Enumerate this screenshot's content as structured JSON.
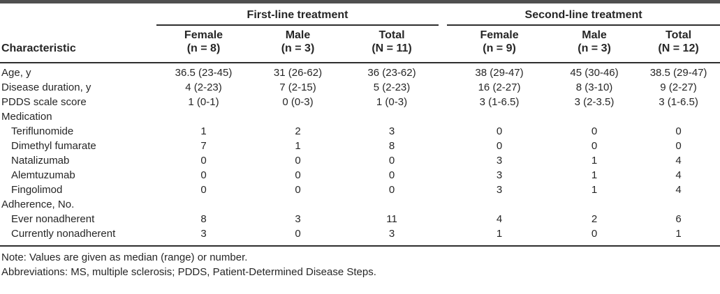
{
  "table": {
    "characteristic_header": "Characteristic",
    "groups": [
      {
        "label": "First-line treatment"
      },
      {
        "label": "Second-line treatment"
      }
    ],
    "columns": [
      {
        "line1": "Female",
        "line2": "(n = 8)"
      },
      {
        "line1": "Male",
        "line2": "(n = 3)"
      },
      {
        "line1": "Total",
        "line2": "(N = 11)"
      },
      {
        "line1": "Female",
        "line2": "(n = 9)"
      },
      {
        "line1": "Male",
        "line2": "(n = 3)"
      },
      {
        "line1": "Total",
        "line2": "(N = 12)"
      }
    ],
    "rows": [
      {
        "label": "Age, y",
        "indent": false,
        "values": [
          "36.5 (23-45)",
          "31 (26-62)",
          "36 (23-62)",
          "38 (29-47)",
          "45 (30-46)",
          "38.5 (29-47)"
        ]
      },
      {
        "label": "Disease duration, y",
        "indent": false,
        "values": [
          "4 (2-23)",
          "7 (2-15)",
          "5 (2-23)",
          "16 (2-27)",
          "8 (3-10)",
          "9 (2-27)"
        ]
      },
      {
        "label": "PDDS scale score",
        "indent": false,
        "values": [
          "1 (0-1)",
          "0 (0-3)",
          "1 (0-3)",
          "3 (1-6.5)",
          "3 (2-3.5)",
          "3 (1-6.5)"
        ]
      },
      {
        "label": "Medication",
        "indent": false,
        "values": [
          "",
          "",
          "",
          "",
          "",
          ""
        ]
      },
      {
        "label": "Teriflunomide",
        "indent": true,
        "values": [
          "1",
          "2",
          "3",
          "0",
          "0",
          "0"
        ]
      },
      {
        "label": "Dimethyl fumarate",
        "indent": true,
        "values": [
          "7",
          "1",
          "8",
          "0",
          "0",
          "0"
        ]
      },
      {
        "label": "Natalizumab",
        "indent": true,
        "values": [
          "0",
          "0",
          "0",
          "3",
          "1",
          "4"
        ]
      },
      {
        "label": "Alemtuzumab",
        "indent": true,
        "values": [
          "0",
          "0",
          "0",
          "3",
          "1",
          "4"
        ]
      },
      {
        "label": "Fingolimod",
        "indent": true,
        "values": [
          "0",
          "0",
          "0",
          "3",
          "1",
          "4"
        ]
      },
      {
        "label": "Adherence, No.",
        "indent": false,
        "values": [
          "",
          "",
          "",
          "",
          "",
          ""
        ]
      },
      {
        "label": "Ever nonadherent",
        "indent": true,
        "values": [
          "8",
          "3",
          "11",
          "4",
          "2",
          "6"
        ]
      },
      {
        "label": "Currently nonadherent",
        "indent": true,
        "values": [
          "3",
          "0",
          "3",
          "1",
          "0",
          "1"
        ]
      }
    ],
    "notes": [
      "Note: Values are given as median (range) or number.",
      "Abbreviations: MS, multiple sclerosis; PDDS, Patient-Determined Disease Steps."
    ]
  },
  "colors": {
    "text": "#262626",
    "rule": "#2e2e2e",
    "top_bar": "#4f4f4f",
    "background": "#ffffff"
  }
}
